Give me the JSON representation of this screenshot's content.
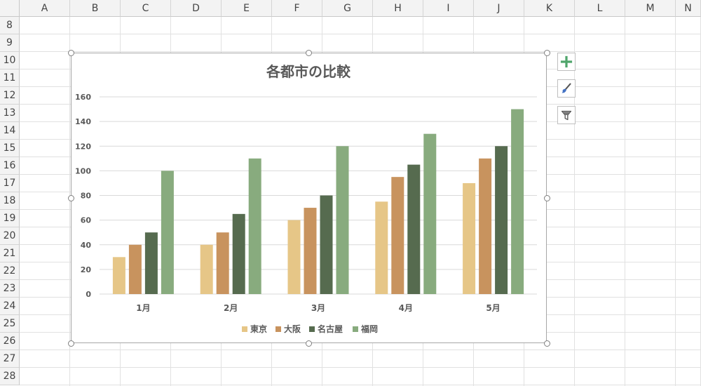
{
  "spreadsheet": {
    "columns": [
      "A",
      "B",
      "C",
      "D",
      "E",
      "F",
      "G",
      "H",
      "I",
      "J",
      "K",
      "L",
      "M",
      "N"
    ],
    "rows": [
      "8",
      "9",
      "10",
      "11",
      "12",
      "13",
      "14",
      "15",
      "16",
      "17",
      "18",
      "19",
      "20",
      "21",
      "22",
      "23",
      "24",
      "25",
      "26",
      "27",
      "28"
    ]
  },
  "chart_buttons": [
    {
      "name": "chart-elements-button",
      "icon": "plus-icon"
    },
    {
      "name": "chart-styles-button",
      "icon": "brush-icon"
    },
    {
      "name": "chart-filters-button",
      "icon": "filter-icon"
    }
  ],
  "colors": {
    "東京": "#e6c687",
    "大阪": "#c8935e",
    "名古屋": "#566b4f",
    "福岡": "#88ab7e",
    "gridline": "#d9d9d9",
    "text": "#595959"
  },
  "chart_data": {
    "type": "bar",
    "title": "各都市の比較",
    "categories": [
      "1月",
      "2月",
      "3月",
      "4月",
      "5月"
    ],
    "series": [
      {
        "name": "東京",
        "values": [
          30,
          40,
          60,
          75,
          90
        ]
      },
      {
        "name": "大阪",
        "values": [
          40,
          50,
          70,
          95,
          110
        ]
      },
      {
        "name": "名古屋",
        "values": [
          50,
          65,
          80,
          105,
          120
        ]
      },
      {
        "name": "福岡",
        "values": [
          100,
          110,
          120,
          130,
          150
        ]
      }
    ],
    "ylim": [
      0,
      160
    ],
    "yticks": [
      0,
      20,
      40,
      60,
      80,
      100,
      120,
      140,
      160
    ],
    "grid": true,
    "legend": "bottom"
  }
}
